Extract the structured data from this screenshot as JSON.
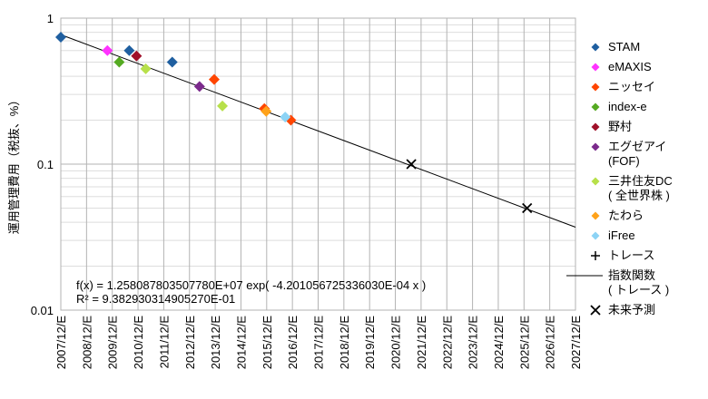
{
  "chart_data": {
    "type": "scatter",
    "y_label": "運用管理費用（税抜、%）",
    "log_y": true,
    "grid": true,
    "legend": "right",
    "xlim": [
      2008,
      2028
    ],
    "xticks": [
      {
        "value": 2008,
        "label": "2007/12/E"
      },
      {
        "value": 2009,
        "label": "2008/12/E"
      },
      {
        "value": 2010,
        "label": "2009/12/E"
      },
      {
        "value": 2011,
        "label": "2010/12/E"
      },
      {
        "value": 2012,
        "label": "2011/12/E"
      },
      {
        "value": 2013,
        "label": "2012/12/E"
      },
      {
        "value": 2014,
        "label": "2013/12/E"
      },
      {
        "value": 2015,
        "label": "2014/12/E"
      },
      {
        "value": 2016,
        "label": "2015/12/E"
      },
      {
        "value": 2017,
        "label": "2016/12/E"
      },
      {
        "value": 2018,
        "label": "2017/12/E"
      },
      {
        "value": 2019,
        "label": "2018/12/E"
      },
      {
        "value": 2020,
        "label": "2019/12/E"
      },
      {
        "value": 2021,
        "label": "2020/12/E"
      },
      {
        "value": 2022,
        "label": "2021/12/E"
      },
      {
        "value": 2023,
        "label": "2022/12/E"
      },
      {
        "value": 2024,
        "label": "2023/12/E"
      },
      {
        "value": 2025,
        "label": "2024/12/E"
      },
      {
        "value": 2026,
        "label": "2025/12/E"
      },
      {
        "value": 2027,
        "label": "2026/12/E"
      },
      {
        "value": 2028,
        "label": "2027/12/E"
      }
    ],
    "ylim": [
      0.01,
      1
    ],
    "yticks": [
      0.01,
      0.1,
      1
    ],
    "annotations": [
      "f(x) = 1.258087803507780E+07 exp( -4.201056725336030E-04 x )",
      "R² = 9.382930314905270E-01"
    ],
    "series": [
      {
        "name": "STAM",
        "color": "#1f5fa0",
        "marker": "diamond",
        "x": [
          2008.0,
          2010.66,
          2012.33
        ],
        "values": [
          0.74,
          0.6,
          0.5
        ]
      },
      {
        "name": "eMAXIS",
        "color": "#ff33ff",
        "marker": "diamond",
        "x": [
          2009.81
        ],
        "values": [
          0.6
        ]
      },
      {
        "name": "ニッセイ",
        "color": "#ff4500",
        "marker": "diamond",
        "x": [
          2013.96,
          2015.91,
          2016.94
        ],
        "values": [
          0.38,
          0.24,
          0.2
        ]
      },
      {
        "name": "index-e",
        "color": "#55aa22",
        "marker": "diamond",
        "x": [
          2010.27
        ],
        "values": [
          0.5
        ]
      },
      {
        "name": "野村",
        "color": "#a0102a",
        "marker": "diamond",
        "x": [
          2010.94
        ],
        "values": [
          0.55
        ]
      },
      {
        "name": "エグゼアイ\n(FOF)",
        "color": "#7b2a8c",
        "marker": "diamond",
        "x": [
          2013.39
        ],
        "values": [
          0.34
        ]
      },
      {
        "name": "三井住友DC\n( 全世界株 )",
        "color": "#b7e04a",
        "marker": "diamond",
        "x": [
          2011.3,
          2014.28
        ],
        "values": [
          0.45,
          0.25
        ]
      },
      {
        "name": "たわら",
        "color": "#ffa21a",
        "marker": "diamond",
        "x": [
          2015.98
        ],
        "values": [
          0.23
        ]
      },
      {
        "name": "iFree",
        "color": "#8cd3f5",
        "marker": "diamond",
        "x": [
          2016.72
        ],
        "values": [
          0.21
        ]
      },
      {
        "name": "トレース",
        "color": "#000000",
        "marker": "plus",
        "x": [],
        "values": []
      },
      {
        "name": "指数関数\n( トレース )",
        "color": "#000000",
        "marker": "line",
        "x": [
          2008,
          2028
        ],
        "values": [
          0.77,
          0.037
        ]
      },
      {
        "name": "未来予測",
        "color": "#000000",
        "marker": "cross",
        "x": [
          2021.62,
          2026.12
        ],
        "values": [
          0.1,
          0.05
        ]
      }
    ]
  }
}
